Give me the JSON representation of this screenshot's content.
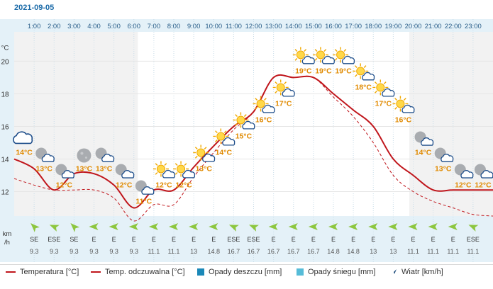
{
  "date": "2021-09-05",
  "units": {
    "temp": "°C",
    "wind_top": "km",
    "wind_bottom": "/h"
  },
  "chart_data": {
    "type": "line",
    "hours": [
      "1:00",
      "2:00",
      "3:00",
      "4:00",
      "5:00",
      "6:00",
      "7:00",
      "8:00",
      "9:00",
      "10:00",
      "11:00",
      "12:00",
      "13:00",
      "14:00",
      "15:00",
      "16:00",
      "17:00",
      "18:00",
      "19:00",
      "20:00",
      "21:00",
      "22:00",
      "23:00"
    ],
    "x": [
      0,
      1,
      2,
      3,
      4,
      5,
      6,
      7,
      8,
      9,
      10,
      11,
      12,
      13,
      14,
      15,
      16,
      17,
      18,
      19,
      20,
      21,
      22,
      23,
      24
    ],
    "yticks": [
      12,
      14,
      16,
      18,
      20
    ],
    "ylim": [
      10.5,
      21.8
    ],
    "ylabel": "°C",
    "series": [
      {
        "name": "Temperatura [°C]",
        "color": "#c0161c",
        "style": "solid",
        "values": [
          14,
          13.4,
          12.1,
          13.1,
          13.1,
          12.4,
          11.0,
          12.1,
          12.1,
          13.5,
          14.8,
          16.0,
          16.9,
          19.0,
          19.0,
          19.0,
          18.0,
          17.0,
          16.0,
          14.0,
          13.0,
          12.1,
          12.1,
          12.1,
          12.1
        ]
      },
      {
        "name": "Temp. odczuwalna [°C]",
        "color": "#c0161c",
        "style": "dashed",
        "values": [
          12.8,
          12.4,
          12.1,
          12.1,
          12.1,
          11.6,
          10.2,
          11.2,
          11.2,
          12.9,
          14.4,
          15.8,
          16.9,
          19.0,
          19.0,
          19.0,
          17.8,
          16.6,
          15.0,
          13.0,
          12.0,
          11.4,
          11.0,
          10.6,
          10.5
        ]
      }
    ],
    "labels": [
      {
        "x": 0.5,
        "value": 14,
        "text": "14°C",
        "icon": "cloud-icon"
      },
      {
        "x": 1.5,
        "value": 13,
        "text": "13°C",
        "icon": "partly-cloudy-night-icon"
      },
      {
        "x": 2.5,
        "value": 12,
        "text": "12°C",
        "icon": "partly-cloudy-night-icon"
      },
      {
        "x": 3.5,
        "value": 13,
        "text": "13°C",
        "icon": "clear-night-icon"
      },
      {
        "x": 4.5,
        "value": 13,
        "text": "13°C",
        "icon": "partly-cloudy-night-icon"
      },
      {
        "x": 5.5,
        "value": 12,
        "text": "12°C",
        "icon": "partly-cloudy-night-icon"
      },
      {
        "x": 6.5,
        "value": 11,
        "text": "11°C",
        "icon": "overcast-night-icon"
      },
      {
        "x": 7.5,
        "value": 12,
        "text": "12°C",
        "icon": "partly-sunny-icon"
      },
      {
        "x": 8.5,
        "value": 12,
        "text": "12°C",
        "icon": "partly-sunny-icon"
      },
      {
        "x": 9.5,
        "value": 13,
        "text": "13°C",
        "icon": "partly-sunny-icon"
      },
      {
        "x": 10.5,
        "value": 14,
        "text": "14°C",
        "icon": "partly-sunny-icon"
      },
      {
        "x": 11.5,
        "value": 15,
        "text": "15°C",
        "icon": "partly-sunny-icon"
      },
      {
        "x": 12.5,
        "value": 16,
        "text": "16°C",
        "icon": "partly-sunny-icon"
      },
      {
        "x": 13.5,
        "value": 17,
        "text": "17°C",
        "icon": "partly-sunny-icon"
      },
      {
        "x": 14.5,
        "value": 19,
        "text": "19°C",
        "icon": "partly-sunny-icon"
      },
      {
        "x": 15.5,
        "value": 19,
        "text": "19°C",
        "icon": "partly-sunny-icon"
      },
      {
        "x": 16.5,
        "value": 19,
        "text": "19°C",
        "icon": "partly-sunny-icon"
      },
      {
        "x": 17.5,
        "value": 18,
        "text": "18°C",
        "icon": "partly-sunny-icon"
      },
      {
        "x": 18.5,
        "value": 17,
        "text": "17°C",
        "icon": "partly-sunny-icon"
      },
      {
        "x": 19.5,
        "value": 16,
        "text": "16°C",
        "icon": "partly-sunny-icon"
      },
      {
        "x": 20.5,
        "value": 14,
        "text": "14°C",
        "icon": "partly-cloudy-night-icon"
      },
      {
        "x": 21.5,
        "value": 13,
        "text": "13°C",
        "icon": "partly-cloudy-night-icon"
      },
      {
        "x": 22.5,
        "value": 12,
        "text": "12°C",
        "icon": "partly-cloudy-night-icon"
      },
      {
        "x": 23.5,
        "value": 12,
        "text": "12°C",
        "icon": "partly-cloudy-night-icon"
      }
    ],
    "wind": {
      "directions": [
        "SE",
        "ESE",
        "SE",
        "E",
        "E",
        "E",
        "E",
        "E",
        "E",
        "E",
        "ESE",
        "ESE",
        "E",
        "E",
        "E",
        "E",
        "E",
        "E",
        "E",
        "E",
        "E",
        "E",
        "ESE"
      ],
      "speeds": [
        "9.3",
        "9.3",
        "9.3",
        "9.3",
        "9.3",
        "9.3",
        "11.1",
        "11.1",
        "13",
        "14.8",
        "16.7",
        "16.7",
        "16.7",
        "16.7",
        "16.7",
        "14.8",
        "14.8",
        "13",
        "13",
        "11.1",
        "11.1",
        "11.1",
        "11.1"
      ]
    },
    "colors": {
      "night_band": "#f2f2f2",
      "axis_band": "#e4f1f8",
      "label_text": "#e08a00",
      "wind_arrow": "#8dc63f"
    }
  },
  "legend": [
    {
      "label": "Temperatura [°C]",
      "type": "line"
    },
    {
      "label": "Temp. odczuwalna [°C]",
      "type": "line"
    },
    {
      "label": "Opady deszczu [mm]",
      "type": "box1"
    },
    {
      "label": "Opady śniegu [mm]",
      "type": "box2"
    },
    {
      "label": "Wiatr [km/h]",
      "type": "arrow"
    }
  ]
}
